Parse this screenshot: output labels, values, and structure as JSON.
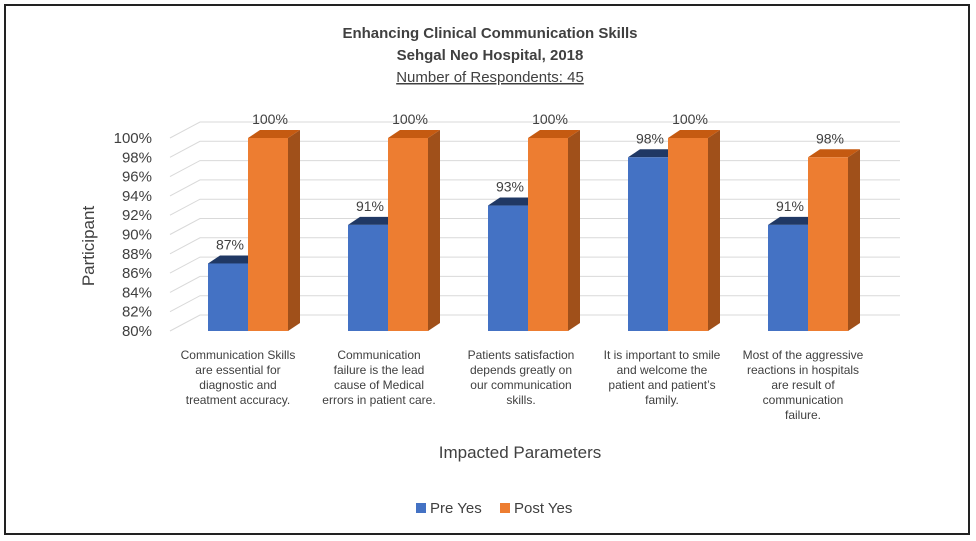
{
  "chart_data": {
    "type": "bar",
    "title": "Enhancing Clinical Communication Skills",
    "subtitle": "Sehgal Neo Hospital, 2018",
    "subtitle2": "Number of Respondents: 45",
    "xlabel": "Impacted Parameters",
    "ylabel": "Participant",
    "ylim": [
      80,
      100
    ],
    "ytick_labels": [
      "80%",
      "82%",
      "84%",
      "86%",
      "88%",
      "90%",
      "92%",
      "94%",
      "96%",
      "98%",
      "100%"
    ],
    "categories": [
      "Communication Skills are essential for diagnostic and treatment accuracy.",
      "Communication failure is the lead cause of Medical errors in patient care.",
      "Patients satisfaction depends greatly on our communication skills.",
      "It is important to smile and welcome the patient and patient’s family.",
      "Most of the aggressive reactions in hospitals are result of communication failure."
    ],
    "category_lines": [
      [
        "Communication Skills",
        "are essential for",
        "diagnostic and",
        "treatment accuracy."
      ],
      [
        "Communication",
        "failure is the lead",
        "cause of Medical",
        "errors in patient care."
      ],
      [
        "Patients satisfaction",
        "depends greatly on",
        "our communication",
        "skills."
      ],
      [
        "It is important to smile",
        "and welcome the",
        "patient and patient’s",
        "family."
      ],
      [
        "Most of the aggressive",
        "reactions in hospitals",
        "are result of",
        "communication",
        "failure."
      ]
    ],
    "series": [
      {
        "name": "Pre Yes",
        "values": [
          87,
          91,
          93,
          98,
          91
        ],
        "labels": [
          "87%",
          "91%",
          "93%",
          "98%",
          "91%"
        ],
        "color": "#4472C4",
        "side_color": "#2F5597",
        "top_color": "#203864"
      },
      {
        "name": "Post Yes",
        "values": [
          100,
          100,
          100,
          100,
          98
        ],
        "labels": [
          "100%",
          "100%",
          "100%",
          "100%",
          "98%"
        ],
        "color": "#ED7D31",
        "side_color": "#A0501A",
        "top_color": "#C55A11"
      }
    ],
    "grid": true,
    "legend_position": "bottom"
  }
}
